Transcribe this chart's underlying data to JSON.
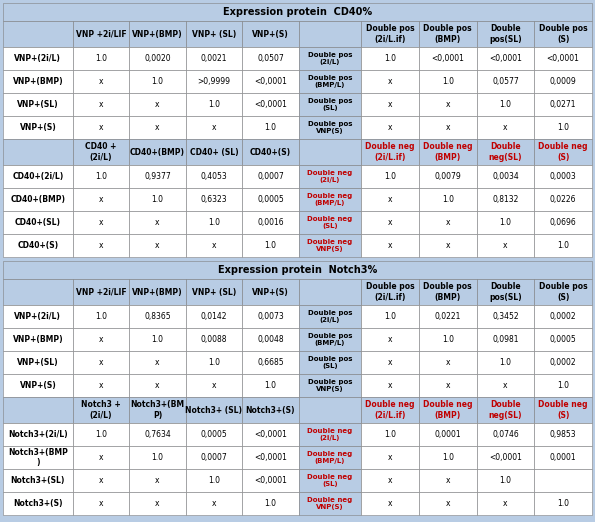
{
  "title1": "Expression protein  CD40%",
  "title2": "Expression protein  Notch3%",
  "bg_color": "#b8cce4",
  "white_bg": "#ffffff",
  "red_color": "#c00000",
  "black": "#000000",
  "sections": [
    {
      "col_headers_left": [
        "VNP +2i/LIF",
        "VNP+(BMP)",
        "VNP+ (SL)",
        "VNP+(S)"
      ],
      "col_headers_right_top": [
        "Double pos\n(2i/L.if)",
        "Double pos\n(BMP)",
        "Double\npos(SL)",
        "Double pos\n(S)"
      ],
      "col_subheaders_left": [
        "CD40 +\n(2i/L)",
        "CD40+(BMP)",
        "CD40+ (SL)",
        "CD40+(S)"
      ],
      "col_headers_right_bot": [
        "Double neg\n(2i/L.if)",
        "Double neg\n(BMP)",
        "Double\nneg(SL)",
        "Double neg\n(S)"
      ],
      "row_labels_top": [
        "VNP+(2i/L)",
        "VNP+(BMP)",
        "VNP+(SL)",
        "VNP+(S)"
      ],
      "row_labels_bot": [
        "CD40+(2i/L)",
        "CD40+(BMP)",
        "CD40+(SL)",
        "CD40+(S)"
      ],
      "mid_labels_top": [
        "Double pos\n(2i/L)",
        "Double pos\n(BMP/L)",
        "Double pos\n(SL)",
        "Double pos\nVNP(S)"
      ],
      "mid_labels_bot": [
        "Double neg\n(2i/L)",
        "Double neg\n(BMP/L)",
        "Double neg\n(SL)",
        "Double neg\nVNP(S)"
      ],
      "data_top_left": [
        [
          "1.0",
          "0,0020",
          "0,0021",
          "0,0507"
        ],
        [
          "x",
          "1.0",
          ">0,9999",
          "<0,0001"
        ],
        [
          "x",
          "x",
          "1.0",
          "<0,0001"
        ],
        [
          "x",
          "x",
          "x",
          "1.0"
        ]
      ],
      "data_bot_left": [
        [
          "1.0",
          "0,9377",
          "0,4053",
          "0,0007"
        ],
        [
          "x",
          "1.0",
          "0,6323",
          "0,0005"
        ],
        [
          "x",
          "x",
          "1.0",
          "0,0016"
        ],
        [
          "x",
          "x",
          "x",
          "1.0"
        ]
      ],
      "data_top_right": [
        [
          "1.0",
          "<0,0001",
          "<0,0001",
          "<0,0001"
        ],
        [
          "x",
          "1.0",
          "0,0577",
          "0,0009"
        ],
        [
          "x",
          "x",
          "1.0",
          "0,0271"
        ],
        [
          "x",
          "x",
          "x",
          "1.0"
        ]
      ],
      "data_bot_right": [
        [
          "1.0",
          "0,0079",
          "0,0034",
          "0,0003"
        ],
        [
          "x",
          "1.0",
          "0,8132",
          "0,0226"
        ],
        [
          "x",
          "x",
          "1.0",
          "0,0696"
        ],
        [
          "x",
          "x",
          "x",
          "1.0"
        ]
      ]
    },
    {
      "col_headers_left": [
        "VNP +2i/LIF",
        "VNP+(BMP)",
        "VNP+ (SL)",
        "VNP+(S)"
      ],
      "col_headers_right_top": [
        "Double pos\n(2i/L.if)",
        "Double pos\n(BMP)",
        "Double\npos(SL)",
        "Double pos\n(S)"
      ],
      "col_subheaders_left": [
        "Notch3 +\n(2i/L)",
        "Notch3+(BM\nP)",
        "Notch3+ (SL)",
        "Notch3+(S)"
      ],
      "col_headers_right_bot": [
        "Double neg\n(2i/L.if)",
        "Double neg\n(BMP)",
        "Double\nneg(SL)",
        "Double neg\n(S)"
      ],
      "row_labels_top": [
        "VNP+(2i/L)",
        "VNP+(BMP)",
        "VNP+(SL)",
        "VNP+(S)"
      ],
      "row_labels_bot": [
        "Notch3+(2i/L)",
        "Notch3+(BMP\n)",
        "Notch3+(SL)",
        "Notch3+(S)"
      ],
      "mid_labels_top": [
        "Double pos\n(2i/L)",
        "Double pos\n(BMP/L)",
        "Double pos\n(SL)",
        "Double pos\nVNP(S)"
      ],
      "mid_labels_bot": [
        "Double neg\n(2i/L)",
        "Double neg\n(BMP/L)",
        "Double neg\n(SL)",
        "Double neg\nVNP(S)"
      ],
      "data_top_left": [
        [
          "1.0",
          "0,8365",
          "0,0142",
          "0,0073"
        ],
        [
          "x",
          "1.0",
          "0,0088",
          "0,0048"
        ],
        [
          "x",
          "x",
          "1.0",
          "0,6685"
        ],
        [
          "x",
          "x",
          "x",
          "1.0"
        ]
      ],
      "data_bot_left": [
        [
          "1.0",
          "0,7634",
          "0,0005",
          "<0,0001"
        ],
        [
          "x",
          "1.0",
          "0,0007",
          "<0,0001"
        ],
        [
          "x",
          "x",
          "1.0",
          "<0,0001"
        ],
        [
          "x",
          "x",
          "x",
          "1.0"
        ]
      ],
      "data_top_right": [
        [
          "1.0",
          "0,0221",
          "0,3452",
          "0,0002"
        ],
        [
          "x",
          "1.0",
          "0,0981",
          "0,0005"
        ],
        [
          "x",
          "x",
          "1.0",
          "0,0002"
        ],
        [
          "x",
          "x",
          "x",
          "1.0"
        ]
      ],
      "data_bot_right": [
        [
          "1.0",
          "0,0001",
          "0,0746",
          "0,9853"
        ],
        [
          "x",
          "1.0",
          "<0,0001",
          "0,0001"
        ],
        [
          "x",
          "x",
          "1.0",
          ""
        ],
        [
          "x",
          "x",
          "x",
          "1.0"
        ]
      ]
    }
  ]
}
